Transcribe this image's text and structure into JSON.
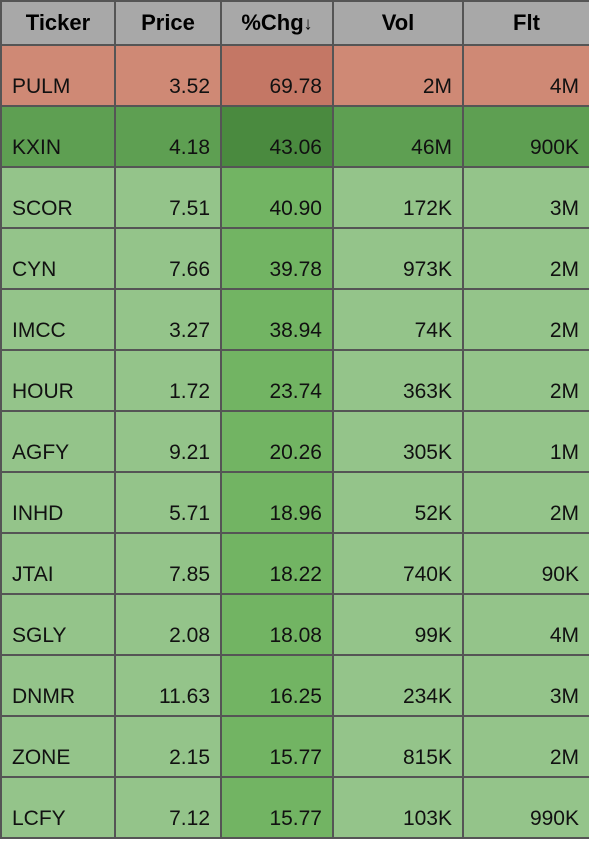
{
  "table": {
    "columns": [
      {
        "key": "ticker",
        "label": "Ticker",
        "sorted": false
      },
      {
        "key": "price",
        "label": "Price",
        "sorted": false
      },
      {
        "key": "chg",
        "label": "%Chg",
        "sorted": true,
        "sort_dir": "desc"
      },
      {
        "key": "vol",
        "label": "Vol",
        "sorted": false
      },
      {
        "key": "flt",
        "label": "Flt",
        "sorted": false
      }
    ],
    "header_bg": "#a8a8a8",
    "border_color": "#555555",
    "row_colors": {
      "red_light": "#cf8975",
      "red_dark": "#c47765",
      "green_mid": "#5e9f52",
      "green_dark": "#4a8a3f",
      "green_light": "#94c48a",
      "green_cell": "#72b463"
    },
    "rows": [
      {
        "ticker": "PULM",
        "price": "3.52",
        "chg": "69.78",
        "vol": "2M",
        "flt": "4M",
        "bg_ticker": "#cf8975",
        "bg_price": "#cf8975",
        "bg_chg": "#c47765",
        "bg_vol": "#cf8975",
        "bg_flt": "#cf8975"
      },
      {
        "ticker": "KXIN",
        "price": "4.18",
        "chg": "43.06",
        "vol": "46M",
        "flt": "900K",
        "bg_ticker": "#5e9f52",
        "bg_price": "#5e9f52",
        "bg_chg": "#4a8a3f",
        "bg_vol": "#5e9f52",
        "bg_flt": "#5e9f52"
      },
      {
        "ticker": "SCOR",
        "price": "7.51",
        "chg": "40.90",
        "vol": "172K",
        "flt": "3M",
        "bg_ticker": "#94c48a",
        "bg_price": "#94c48a",
        "bg_chg": "#72b463",
        "bg_vol": "#94c48a",
        "bg_flt": "#94c48a"
      },
      {
        "ticker": "CYN",
        "price": "7.66",
        "chg": "39.78",
        "vol": "973K",
        "flt": "2M",
        "bg_ticker": "#94c48a",
        "bg_price": "#94c48a",
        "bg_chg": "#72b463",
        "bg_vol": "#94c48a",
        "bg_flt": "#94c48a"
      },
      {
        "ticker": "IMCC",
        "price": "3.27",
        "chg": "38.94",
        "vol": "74K",
        "flt": "2M",
        "bg_ticker": "#94c48a",
        "bg_price": "#94c48a",
        "bg_chg": "#72b463",
        "bg_vol": "#94c48a",
        "bg_flt": "#94c48a"
      },
      {
        "ticker": "HOUR",
        "price": "1.72",
        "chg": "23.74",
        "vol": "363K",
        "flt": "2M",
        "bg_ticker": "#94c48a",
        "bg_price": "#94c48a",
        "bg_chg": "#72b463",
        "bg_vol": "#94c48a",
        "bg_flt": "#94c48a"
      },
      {
        "ticker": "AGFY",
        "price": "9.21",
        "chg": "20.26",
        "vol": "305K",
        "flt": "1M",
        "bg_ticker": "#94c48a",
        "bg_price": "#94c48a",
        "bg_chg": "#72b463",
        "bg_vol": "#94c48a",
        "bg_flt": "#94c48a"
      },
      {
        "ticker": "INHD",
        "price": "5.71",
        "chg": "18.96",
        "vol": "52K",
        "flt": "2M",
        "bg_ticker": "#94c48a",
        "bg_price": "#94c48a",
        "bg_chg": "#72b463",
        "bg_vol": "#94c48a",
        "bg_flt": "#94c48a"
      },
      {
        "ticker": "JTAI",
        "price": "7.85",
        "chg": "18.22",
        "vol": "740K",
        "flt": "90K",
        "bg_ticker": "#94c48a",
        "bg_price": "#94c48a",
        "bg_chg": "#72b463",
        "bg_vol": "#94c48a",
        "bg_flt": "#94c48a"
      },
      {
        "ticker": "SGLY",
        "price": "2.08",
        "chg": "18.08",
        "vol": "99K",
        "flt": "4M",
        "bg_ticker": "#94c48a",
        "bg_price": "#94c48a",
        "bg_chg": "#72b463",
        "bg_vol": "#94c48a",
        "bg_flt": "#94c48a"
      },
      {
        "ticker": "DNMR",
        "price": "11.63",
        "chg": "16.25",
        "vol": "234K",
        "flt": "3M",
        "bg_ticker": "#94c48a",
        "bg_price": "#94c48a",
        "bg_chg": "#72b463",
        "bg_vol": "#94c48a",
        "bg_flt": "#94c48a"
      },
      {
        "ticker": "ZONE",
        "price": "2.15",
        "chg": "15.77",
        "vol": "815K",
        "flt": "2M",
        "bg_ticker": "#94c48a",
        "bg_price": "#94c48a",
        "bg_chg": "#72b463",
        "bg_vol": "#94c48a",
        "bg_flt": "#94c48a"
      },
      {
        "ticker": "LCFY",
        "price": "7.12",
        "chg": "15.77",
        "vol": "103K",
        "flt": "990K",
        "bg_ticker": "#94c48a",
        "bg_price": "#94c48a",
        "bg_chg": "#72b463",
        "bg_vol": "#94c48a",
        "bg_flt": "#94c48a"
      }
    ]
  }
}
